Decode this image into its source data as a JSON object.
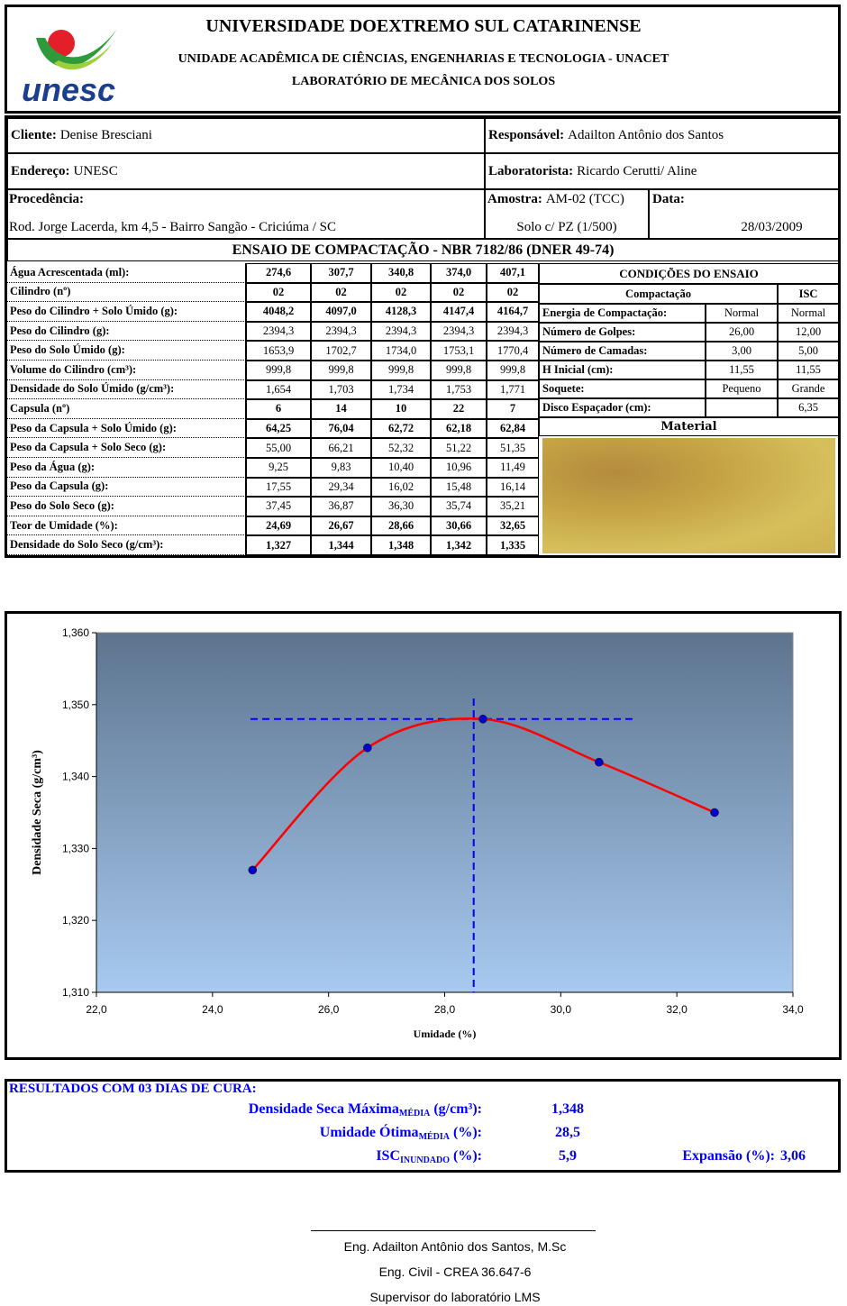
{
  "header": {
    "logo": "unesc",
    "title": "UNIVERSIDADE DOEXTREMO SUL CATARINENSE",
    "subtitle": "UNIDADE ACADÊMICA DE CIÊNCIAS, ENGENHARIAS E TECNOLOGIA - UNACET",
    "lab": "LABORATÓRIO DE MECÂNICA DOS SOLOS"
  },
  "info": {
    "cliente_label": "Cliente:",
    "cliente": "Denise Bresciani",
    "responsavel_label": "Responsável:",
    "responsavel": "Adailton Antônio dos Santos",
    "endereco_label": "Endereço:",
    "endereco": "UNESC",
    "laboratorista_label": "Laboratorista:",
    "laboratorista": "Ricardo Cerutti/ Aline",
    "procedencia_label": "Procedência:",
    "procedencia": "Rod. Jorge Lacerda, km 4,5 - Bairro Sangão - Criciúma / SC",
    "amostra_label": "Amostra:",
    "amostra": "AM-02 (TCC)",
    "solo": "Solo c/ PZ (1/500)",
    "data_label": "Data:",
    "data": "28/03/2009"
  },
  "table": {
    "title": "ENSAIO DE COMPACTAÇÃO - NBR 7182/86 (DNER 49-74)",
    "rows": [
      [
        "Água Acrescentada (ml):",
        "274,6",
        "307,7",
        "340,8",
        "374,0",
        "407,1"
      ],
      [
        "Cilindro (nº)",
        "02",
        "02",
        "02",
        "02",
        "02"
      ],
      [
        "Peso do Cilindro + Solo Úmido (g):",
        "4048,2",
        "4097,0",
        "4128,3",
        "4147,4",
        "4164,7"
      ],
      [
        "Peso do Cilindro (g):",
        "2394,3",
        "2394,3",
        "2394,3",
        "2394,3",
        "2394,3"
      ],
      [
        "Peso do Solo Úmido (g):",
        "1653,9",
        "1702,7",
        "1734,0",
        "1753,1",
        "1770,4"
      ],
      [
        "Volume do Cilindro (cm³):",
        "999,8",
        "999,8",
        "999,8",
        "999,8",
        "999,8"
      ],
      [
        "Densidade do Solo Úmido (g/cm³):",
        "1,654",
        "1,703",
        "1,734",
        "1,753",
        "1,771"
      ],
      [
        "Capsula (nº)",
        "6",
        "14",
        "10",
        "22",
        "7"
      ],
      [
        "Peso da Capsula + Solo Úmido (g):",
        "64,25",
        "76,04",
        "62,72",
        "62,18",
        "62,84"
      ],
      [
        "Peso da Capsula + Solo Seco (g):",
        "55,00",
        "66,21",
        "52,32",
        "51,22",
        "51,35"
      ],
      [
        "Peso da Água (g):",
        "9,25",
        "9,83",
        "10,40",
        "10,96",
        "11,49"
      ],
      [
        "Peso da Capsula (g):",
        "17,55",
        "29,34",
        "16,02",
        "15,48",
        "16,14"
      ],
      [
        "Peso do Solo Seco (g):",
        "37,45",
        "36,87",
        "36,30",
        "35,74",
        "35,21"
      ],
      [
        "Teor de Umidade (%):",
        "24,69",
        "26,67",
        "28,66",
        "30,66",
        "32,65"
      ],
      [
        "Densidade do Solo Seco (g/cm³):",
        "1,327",
        "1,344",
        "1,348",
        "1,342",
        "1,335"
      ]
    ]
  },
  "conditions": {
    "title": "CONDIÇÕES DO ENSAIO",
    "col1": "Compactação",
    "col2": "ISC",
    "rows": [
      {
        "label": "Energia de Compactação:",
        "compactacao": "Normal",
        "isc": "Normal"
      },
      {
        "label": "Número de Golpes:",
        "compactacao": "26,00",
        "isc": "12,00"
      },
      {
        "label": "Número de Camadas:",
        "compactacao": "3,00",
        "isc": "5,00"
      },
      {
        "label": "H Inicial (cm):",
        "compactacao": "11,55",
        "isc": "11,55"
      },
      {
        "label": "Soquete:",
        "compactacao": "Pequeno",
        "isc": "Grande"
      },
      {
        "label": "Disco Espaçador (cm):",
        "isc": "6,35"
      }
    ],
    "material": "Material"
  },
  "chart_data": {
    "type": "line",
    "xlabel": "Umidade (%)",
    "ylabel": "Densidade Seca (g/cm³)",
    "x": [
      24.69,
      26.67,
      28.66,
      30.66,
      32.65
    ],
    "values": [
      1.327,
      1.344,
      1.348,
      1.342,
      1.335
    ],
    "color": "#ff0000",
    "marker_color": "#0000cc",
    "xlim": [
      22,
      34
    ],
    "xticks": [
      {
        "value": 22,
        "label": "22,0"
      },
      {
        "value": 24,
        "label": "24,0"
      },
      {
        "value": 26,
        "label": "26,0"
      },
      {
        "value": 28,
        "label": "28,0"
      },
      {
        "value": 30,
        "label": "30,0"
      },
      {
        "value": 32,
        "label": "32,0"
      },
      {
        "value": 34,
        "label": "34,0"
      }
    ],
    "ylim": [
      1.31,
      1.36
    ],
    "yticks": [
      {
        "value": 1.31,
        "label": "1,310"
      },
      {
        "value": 1.32,
        "label": "1,320"
      },
      {
        "value": 1.33,
        "label": "1,330"
      },
      {
        "value": 1.34,
        "label": "1,340"
      },
      {
        "value": 1.35,
        "label": "1,350"
      },
      {
        "value": 1.36,
        "label": "1,360"
      }
    ],
    "ref_x": 28.5,
    "ref_y": 1.348,
    "ref_color": "#0000ff"
  },
  "results": {
    "title": "RESULTADOS COM 03 DIAS DE CURA:",
    "lines": [
      {
        "label": "Densidade Seca Máxima",
        "sub": "MÉDIA",
        "unit": " (g/cm³):",
        "value": "1,348"
      },
      {
        "label": "Umidade Ótima",
        "sub": "MÉDIA",
        "unit": " (%):",
        "value": "28,5"
      },
      {
        "label": "ISC",
        "sub": "INUNDADO",
        "unit": " (%):",
        "value": "5,9"
      }
    ],
    "expansao_label": "Expansão (%):",
    "expansao": "3,06"
  },
  "signature": {
    "name": "Eng. Adailton Antônio dos Santos, M.Sc",
    "crea": "Eng. Civil - CREA 36.647-6",
    "role": "Supervisor do laboratório LMS"
  }
}
